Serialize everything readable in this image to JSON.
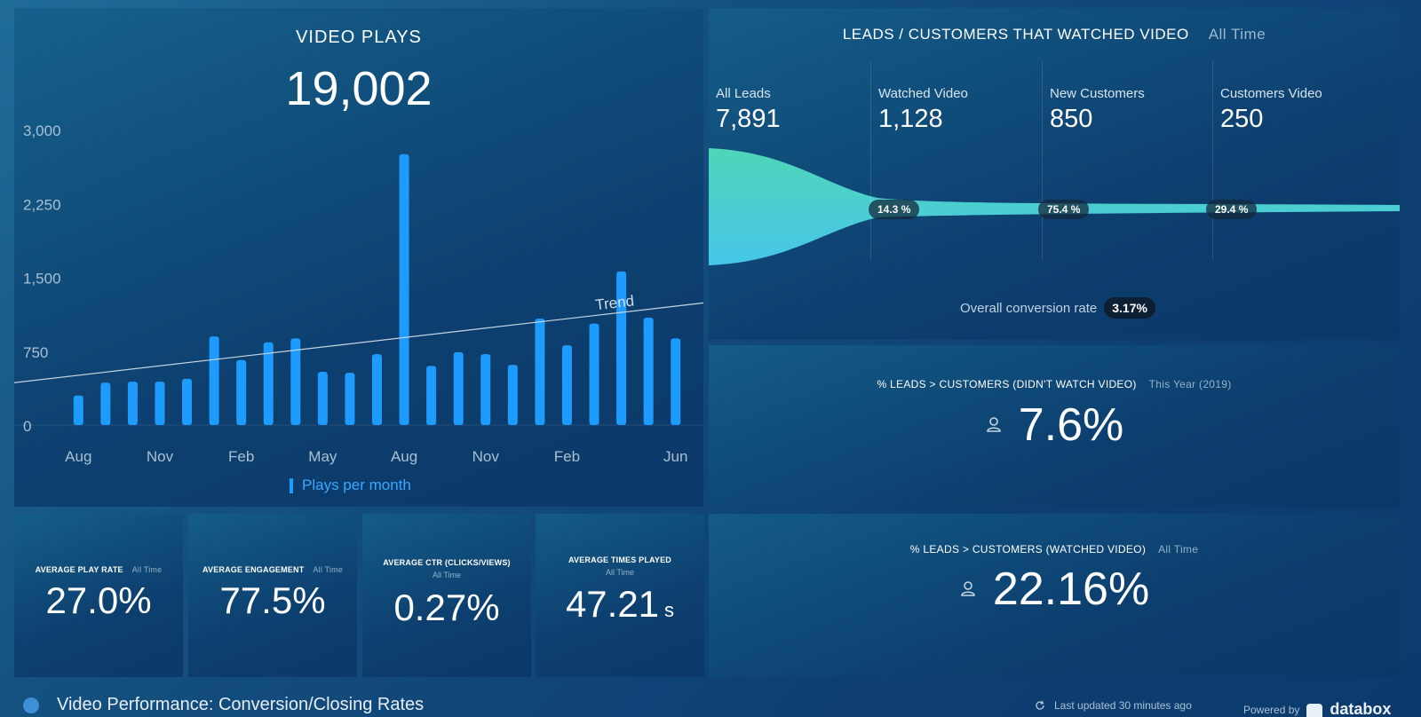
{
  "video_plays": {
    "title": "VIDEO PLAYS",
    "total": "19,002",
    "legend": "Plays per month",
    "trend_label": "Trend"
  },
  "chart_data": {
    "type": "bar",
    "title": "VIDEO PLAYS",
    "series": [
      {
        "name": "Plays per month",
        "values": [
          300,
          430,
          440,
          440,
          470,
          900,
          660,
          840,
          880,
          540,
          530,
          720,
          2750,
          600,
          740,
          720,
          610,
          1080,
          810,
          1030,
          1560,
          1090,
          880
        ]
      }
    ],
    "x_tick_labels": [
      "Aug",
      "Nov",
      "Feb",
      "May",
      "Aug",
      "Nov",
      "Feb",
      "Jun"
    ],
    "y_tick_labels": [
      "0",
      "750",
      "1,500",
      "2,250",
      "3,000"
    ],
    "ylim": [
      0,
      3000
    ],
    "trend": {
      "start": 430,
      "end": 1240
    },
    "colors": {
      "bar": "#1e9bff",
      "trend": "#c8d6e2"
    }
  },
  "funnel": {
    "title": "LEADS / CUSTOMERS THAT WATCHED VIDEO",
    "period": "All Time",
    "stages": [
      {
        "label": "All Leads",
        "value": "7,891"
      },
      {
        "label": "Watched Video",
        "value": "1,128"
      },
      {
        "label": "New Customers",
        "value": "850"
      },
      {
        "label": "Customers Video",
        "value": "250"
      }
    ],
    "conversions": [
      "14.3 %",
      "75.4 %",
      "29.4 %"
    ],
    "overall_label": "Overall conversion rate",
    "overall_value": "3.17%"
  },
  "no_watch": {
    "title": "% LEADS > CUSTOMERS (DIDN'T WATCH VIDEO)",
    "period": "This Year (2019)",
    "value": "7.6%"
  },
  "watch": {
    "title": "% LEADS > CUSTOMERS (WATCHED VIDEO)",
    "period": "All Time",
    "value": "22.16%"
  },
  "kpis": [
    {
      "title": "AVERAGE PLAY RATE",
      "period": "All Time",
      "value": "27.0%"
    },
    {
      "title": "AVERAGE ENGAGEMENT",
      "period": "All Time",
      "value": "77.5%"
    },
    {
      "title": "AVERAGE CTR (CLICKS/VIEWS)",
      "period": "All Time",
      "value": "0.27%"
    },
    {
      "title": "AVERAGE TIMES PLAYED",
      "period": "All Time",
      "value": "47.21",
      "unit": "s"
    }
  ],
  "footer": {
    "dashboard_title": "Video Performance: Conversion/Closing Rates",
    "updated": "Last updated 30 minutes ago",
    "powered_by": "Powered by",
    "brand": "databox"
  }
}
